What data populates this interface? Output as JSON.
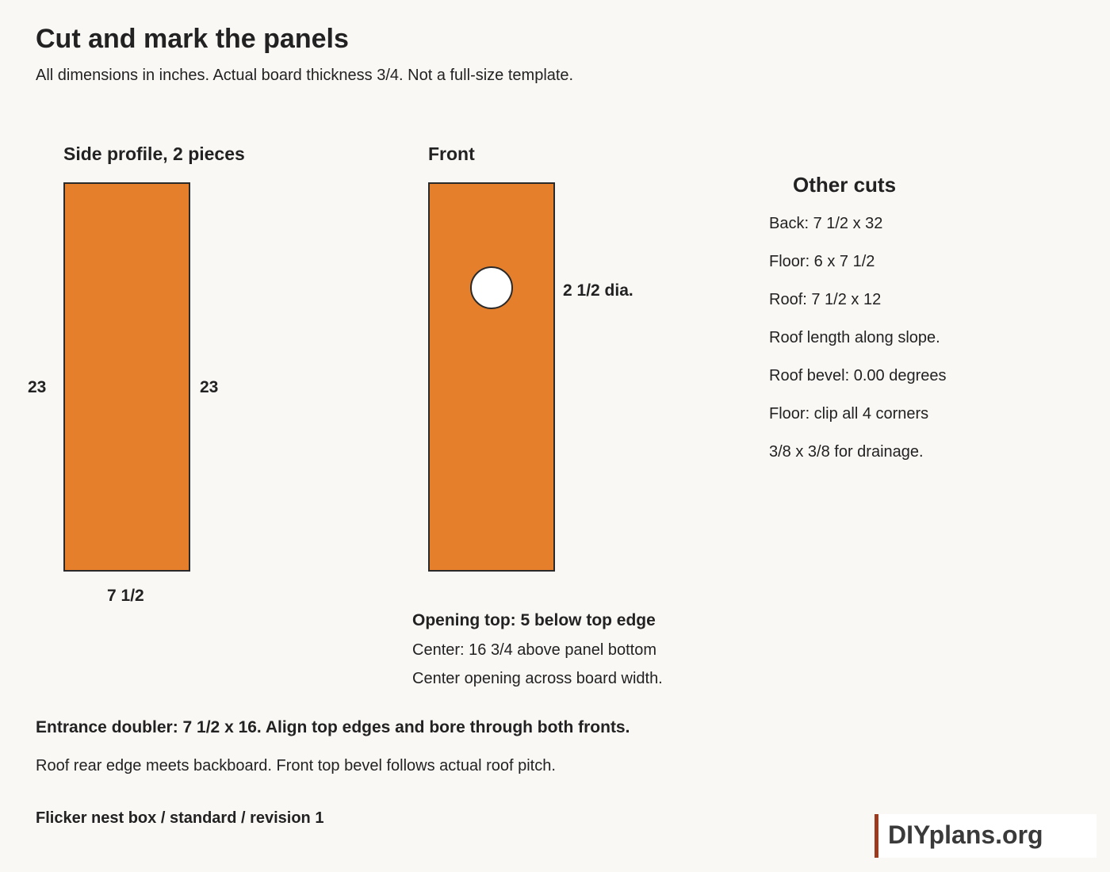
{
  "header": {
    "title": "Cut and mark the panels",
    "subtitle": "All dimensions in inches. Actual board thickness 3/4. Not a full-size template."
  },
  "side_profile": {
    "heading": "Side profile, 2 pieces",
    "left_height": "23",
    "right_height": "23",
    "width": "7 1/2"
  },
  "front": {
    "heading": "Front",
    "hole_label": "2 1/2 dia.",
    "opening_top": "Opening top: 5 below top edge",
    "center_note": "Center: 16 3/4 above panel bottom",
    "center_width_note": "Center opening across board width."
  },
  "other_cuts": {
    "heading": "Other cuts",
    "items": [
      "Back: 7 1/2 x 32",
      "Floor: 6 x 7 1/2",
      "Roof: 7 1/2 x 12",
      "Roof length along slope.",
      "Roof bevel: 0.00 degrees",
      "Floor: clip all 4 corners",
      "3/8 x 3/8 for drainage."
    ]
  },
  "notes": {
    "doubler": "Entrance doubler: 7 1/2 x 16. Align top edges and bore through both fronts.",
    "roof_edge": "Roof rear edge meets backboard. Front top bevel follows actual roof pitch.",
    "footer": "Flicker nest box / standard / revision 1"
  },
  "brand": {
    "logo": "DIYplans.org",
    "accent": "#9b3a1c"
  },
  "colors": {
    "panel_fill": "#e57f2b",
    "background": "#faf8f5"
  }
}
